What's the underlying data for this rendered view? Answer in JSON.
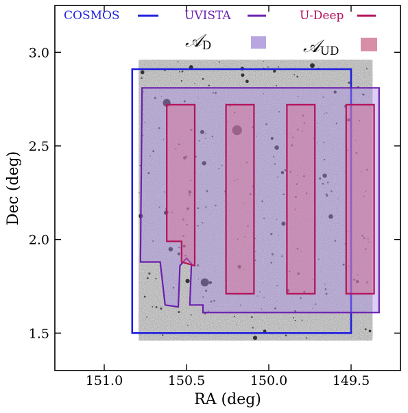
{
  "chart_data": {
    "type": "scatter",
    "xlabel": "RA (deg)",
    "ylabel": "Dec (deg)",
    "xlim": [
      151.3,
      149.2
    ],
    "ylim": [
      1.3,
      3.25
    ],
    "x_ticks": [
      151.0,
      150.5,
      150.0,
      149.5
    ],
    "x_tick_labels": [
      "151.0",
      "150.5",
      "150.0",
      "149.5"
    ],
    "y_ticks": [
      1.5,
      2.0,
      2.5,
      3.0
    ],
    "y_tick_labels": [
      "1.5",
      "2.0",
      "2.5",
      "3.0"
    ],
    "legend": {
      "placement": "top",
      "lines": [
        {
          "label": "COSMOS",
          "color": "#1f1fe0"
        },
        {
          "label": "UVISTA",
          "color": "#6a1fb0"
        },
        {
          "label": "U-Deep",
          "color": "#b3125a"
        }
      ],
      "patches": [
        {
          "label": "𝒜",
          "sub": "D",
          "fill": "#b8a6e0"
        },
        {
          "label": "𝒜",
          "sub": "UD",
          "fill": "#d98ea8"
        }
      ]
    },
    "background_image": {
      "ra": [
        150.79,
        149.37
      ],
      "dec": [
        1.46,
        2.96
      ]
    },
    "series": [
      {
        "name": "COSMOS",
        "color": "#1f1fe0",
        "points": [
          [
            150.83,
            1.5
          ],
          [
            150.83,
            2.91
          ],
          [
            149.5,
            2.91
          ],
          [
            149.5,
            1.5
          ],
          [
            150.83,
            1.5
          ]
        ]
      },
      {
        "name": "UVISTA",
        "color": "#6a1fb0",
        "points": [
          [
            150.77,
            2.81
          ],
          [
            149.33,
            2.81
          ],
          [
            149.33,
            1.61
          ],
          [
            150.4,
            1.61
          ],
          [
            150.4,
            1.65
          ],
          [
            150.48,
            1.65
          ],
          [
            150.47,
            1.87
          ],
          [
            150.5,
            1.9
          ],
          [
            150.54,
            1.86
          ],
          [
            150.55,
            1.64
          ],
          [
            150.63,
            1.65
          ],
          [
            150.66,
            1.88
          ],
          [
            150.72,
            1.88
          ],
          [
            150.78,
            1.88
          ],
          [
            150.77,
            2.81
          ]
        ]
      },
      {
        "name": "U-Deep 1",
        "color": "#b3125a",
        "points": [
          [
            150.62,
            2.72
          ],
          [
            150.45,
            2.72
          ],
          [
            150.45,
            1.86
          ],
          [
            150.53,
            1.88
          ],
          [
            150.53,
            1.99
          ],
          [
            150.62,
            1.99
          ],
          [
            150.62,
            2.72
          ]
        ]
      },
      {
        "name": "U-Deep 2",
        "color": "#b3125a",
        "points": [
          [
            150.26,
            2.72
          ],
          [
            150.09,
            2.72
          ],
          [
            150.09,
            1.71
          ],
          [
            150.26,
            1.71
          ],
          [
            150.26,
            2.72
          ]
        ]
      },
      {
        "name": "U-Deep 3",
        "color": "#b3125a",
        "points": [
          [
            149.89,
            2.72
          ],
          [
            149.72,
            2.72
          ],
          [
            149.72,
            1.71
          ],
          [
            149.89,
            1.71
          ],
          [
            149.89,
            2.72
          ]
        ]
      },
      {
        "name": "U-Deep 4",
        "color": "#b3125a",
        "points": [
          [
            149.53,
            2.72
          ],
          [
            149.36,
            2.72
          ],
          [
            149.36,
            1.71
          ],
          [
            149.53,
            1.71
          ],
          [
            149.53,
            2.72
          ]
        ]
      }
    ]
  }
}
